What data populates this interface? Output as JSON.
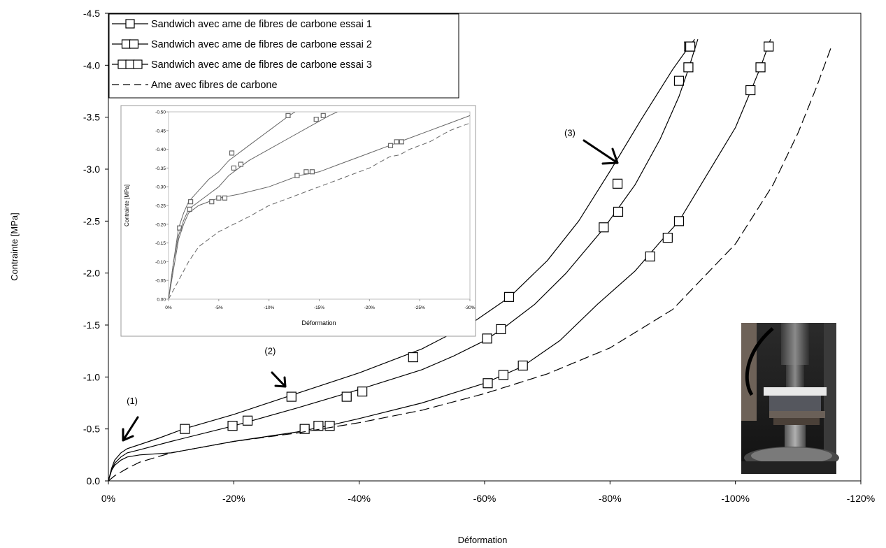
{
  "chart_data": [
    {
      "type": "line",
      "xlabel": "Déformation",
      "ylabel": "Contrainte [MPa]",
      "xlim": [
        0,
        -120
      ],
      "ylim": [
        0,
        -4.5
      ],
      "x_ticks": [
        "0%",
        "-20%",
        "-40%",
        "-60%",
        "-80%",
        "-100%",
        "-120%"
      ],
      "y_ticks": [
        "0.0",
        "-0.5",
        "-1.0",
        "-1.5",
        "-2.0",
        "-2.5",
        "-3.0",
        "-3.5",
        "-4.0",
        "-4.5"
      ],
      "grid": false,
      "legend_position": "top-left",
      "series": [
        {
          "name": "Sandwich avec ame de  fibres de carbone essai 1",
          "marker": "square-1",
          "line": "solid",
          "points": [
            [
              0,
              0
            ],
            [
              -0.5,
              -0.12
            ],
            [
              -1,
              -0.2
            ],
            [
              -2,
              -0.27
            ],
            [
              -3,
              -0.31
            ],
            [
              -5,
              -0.35
            ],
            [
              -8,
              -0.41
            ],
            [
              -12,
              -0.5
            ],
            [
              -20,
              -0.64
            ],
            [
              -30,
              -0.84
            ],
            [
              -40,
              -1.04
            ],
            [
              -50,
              -1.27
            ],
            [
              -58,
              -1.52
            ],
            [
              -64,
              -1.77
            ],
            [
              -70,
              -2.12
            ],
            [
              -75,
              -2.5
            ],
            [
              -80,
              -2.98
            ],
            [
              -85,
              -3.48
            ],
            [
              -90,
              -3.96
            ],
            [
              -92.6,
              -4.18
            ],
            [
              -93.5,
              -4.25
            ]
          ],
          "markers": [
            [
              -12.2,
              -0.5
            ],
            [
              -29.2,
              -0.81
            ],
            [
              -48.6,
              -1.19
            ],
            [
              -63.9,
              -1.77
            ],
            [
              -81.2,
              -2.86
            ],
            [
              -91.0,
              -3.85
            ],
            [
              -92.6,
              -4.18
            ]
          ]
        },
        {
          "name": "Sandwich avec ame de  fibres de carbone essai 2",
          "marker": "square-2",
          "line": "solid",
          "points": [
            [
              0,
              0
            ],
            [
              -0.5,
              -0.1
            ],
            [
              -1,
              -0.17
            ],
            [
              -2,
              -0.23
            ],
            [
              -3,
              -0.27
            ],
            [
              -5,
              -0.3
            ],
            [
              -10,
              -0.38
            ],
            [
              -20,
              -0.53
            ],
            [
              -30,
              -0.7
            ],
            [
              -40,
              -0.88
            ],
            [
              -50,
              -1.07
            ],
            [
              -55,
              -1.2
            ],
            [
              -60,
              -1.35
            ],
            [
              -63,
              -1.47
            ],
            [
              -68,
              -1.7
            ],
            [
              -73,
              -2.0
            ],
            [
              -79,
              -2.43
            ],
            [
              -84,
              -2.85
            ],
            [
              -88,
              -3.29
            ],
            [
              -91,
              -3.7
            ],
            [
              -92.6,
              -3.98
            ],
            [
              -94,
              -4.25
            ]
          ],
          "markers": [
            [
              -19.8,
              -0.53
            ],
            [
              -22.2,
              -0.58
            ],
            [
              -38.0,
              -0.81
            ],
            [
              -40.5,
              -0.86
            ],
            [
              -60.4,
              -1.37
            ],
            [
              -62.6,
              -1.46
            ],
            [
              -79.0,
              -2.44
            ],
            [
              -81.3,
              -2.59
            ],
            [
              -92.5,
              -3.98
            ],
            [
              -92.8,
              -4.18
            ]
          ]
        },
        {
          "name": "Sandwich avec ame de  fibres de carbone essai 3",
          "marker": "square-3",
          "line": "solid",
          "points": [
            [
              0,
              0
            ],
            [
              -0.5,
              -0.1
            ],
            [
              -1,
              -0.15
            ],
            [
              -2,
              -0.2
            ],
            [
              -3,
              -0.23
            ],
            [
              -5,
              -0.25
            ],
            [
              -10,
              -0.27
            ],
            [
              -20,
              -0.38
            ],
            [
              -30,
              -0.47
            ],
            [
              -35,
              -0.53
            ],
            [
              -40,
              -0.6
            ],
            [
              -50,
              -0.75
            ],
            [
              -60,
              -0.94
            ],
            [
              -66,
              -1.1
            ],
            [
              -72,
              -1.35
            ],
            [
              -78,
              -1.7
            ],
            [
              -84,
              -2.02
            ],
            [
              -88,
              -2.3
            ],
            [
              -91,
              -2.5
            ],
            [
              -95,
              -2.9
            ],
            [
              -100,
              -3.4
            ],
            [
              -102.5,
              -3.76
            ],
            [
              -104,
              -3.98
            ],
            [
              -105.6,
              -4.25
            ]
          ],
          "markers": [
            [
              -31.3,
              -0.5
            ],
            [
              -33.5,
              -0.53
            ],
            [
              -35.3,
              -0.53
            ],
            [
              -60.5,
              -0.94
            ],
            [
              -63.0,
              -1.02
            ],
            [
              -66.1,
              -1.11
            ],
            [
              -86.4,
              -2.16
            ],
            [
              -89.2,
              -2.34
            ],
            [
              -91.0,
              -2.5
            ],
            [
              -102.4,
              -3.76
            ],
            [
              -104.0,
              -3.98
            ],
            [
              -105.3,
              -4.18
            ]
          ]
        },
        {
          "name": "Ame avec fibres de carbone",
          "marker": "none",
          "line": "dashed",
          "points": [
            [
              0,
              0
            ],
            [
              -1,
              -0.05
            ],
            [
              -3,
              -0.12
            ],
            [
              -5,
              -0.18
            ],
            [
              -10,
              -0.27
            ],
            [
              -20,
              -0.38
            ],
            [
              -30,
              -0.46
            ],
            [
              -40,
              -0.56
            ],
            [
              -50,
              -0.68
            ],
            [
              -60,
              -0.84
            ],
            [
              -70,
              -1.03
            ],
            [
              -80,
              -1.28
            ],
            [
              -90,
              -1.65
            ],
            [
              -100,
              -2.28
            ],
            [
              -106,
              -2.85
            ],
            [
              -110,
              -3.35
            ],
            [
              -113,
              -3.8
            ],
            [
              -115.3,
              -4.18
            ]
          ]
        }
      ],
      "annotations": [
        {
          "text": "(1)",
          "x": -3.8,
          "y": -0.74
        },
        {
          "text": "(2)",
          "x": -25.8,
          "y": -1.22
        },
        {
          "text": "(3)",
          "x": -73.6,
          "y": -3.32
        }
      ]
    },
    {
      "type": "line",
      "xlabel": "Déformation",
      "ylabel": "Contrainte [MPa]",
      "xlim": [
        0,
        -30
      ],
      "ylim": [
        0,
        -0.5
      ],
      "x_ticks": [
        "0%",
        "-5%",
        "-10%",
        "-15%",
        "-20%",
        "-25%",
        "-30%"
      ],
      "y_ticks": [
        "0.00",
        "-0.05",
        "-0.10",
        "-0.15",
        "-0.20",
        "-0.25",
        "-0.30",
        "-0.35",
        "-0.40",
        "-0.45",
        "-0.50"
      ],
      "grid": false,
      "series": [
        {
          "ref": 1,
          "line": "solid",
          "points": [
            [
              0,
              0
            ],
            [
              -0.5,
              -0.1
            ],
            [
              -1,
              -0.19
            ],
            [
              -1.5,
              -0.23
            ],
            [
              -2,
              -0.26
            ],
            [
              -3,
              -0.29
            ],
            [
              -4,
              -0.32
            ],
            [
              -5,
              -0.34
            ],
            [
              -6,
              -0.37
            ],
            [
              -8,
              -0.41
            ],
            [
              -10,
              -0.45
            ],
            [
              -12,
              -0.49
            ],
            [
              -12.6,
              -0.5
            ]
          ],
          "markers": [
            [
              -1.1,
              -0.19
            ],
            [
              -2.2,
              -0.26
            ],
            [
              -6.3,
              -0.39
            ],
            [
              -11.9,
              -0.49
            ]
          ]
        },
        {
          "ref": 2,
          "line": "solid",
          "points": [
            [
              0,
              0
            ],
            [
              -0.5,
              -0.1
            ],
            [
              -1,
              -0.17
            ],
            [
              -1.5,
              -0.21
            ],
            [
              -2,
              -0.24
            ],
            [
              -3,
              -0.26
            ],
            [
              -4,
              -0.28
            ],
            [
              -5,
              -0.3
            ],
            [
              -6,
              -0.33
            ],
            [
              -8,
              -0.37
            ],
            [
              -10,
              -0.4
            ],
            [
              -12,
              -0.43
            ],
            [
              -14,
              -0.46
            ],
            [
              -16,
              -0.49
            ],
            [
              -16.8,
              -0.5
            ]
          ],
          "markers": [
            [
              -2.1,
              -0.24
            ],
            [
              -6.5,
              -0.35
            ],
            [
              -7.2,
              -0.36
            ],
            [
              -14.7,
              -0.48
            ],
            [
              -15.4,
              -0.49
            ]
          ]
        },
        {
          "ref": 3,
          "line": "solid",
          "points": [
            [
              0,
              0
            ],
            [
              -0.5,
              -0.08
            ],
            [
              -1,
              -0.16
            ],
            [
              -1.5,
              -0.2
            ],
            [
              -2,
              -0.23
            ],
            [
              -3,
              -0.25
            ],
            [
              -4,
              -0.26
            ],
            [
              -5,
              -0.27
            ],
            [
              -7,
              -0.28
            ],
            [
              -10,
              -0.3
            ],
            [
              -13,
              -0.33
            ],
            [
              -15,
              -0.34
            ],
            [
              -17,
              -0.36
            ],
            [
              -20,
              -0.39
            ],
            [
              -22,
              -0.41
            ],
            [
              -24,
              -0.43
            ],
            [
              -26,
              -0.45
            ],
            [
              -28,
              -0.47
            ],
            [
              -30,
              -0.49
            ]
          ],
          "markers": [
            [
              -4.3,
              -0.26
            ],
            [
              -5.0,
              -0.27
            ],
            [
              -5.6,
              -0.27
            ],
            [
              -12.8,
              -0.33
            ],
            [
              -13.7,
              -0.34
            ],
            [
              -14.3,
              -0.34
            ],
            [
              -22.1,
              -0.41
            ],
            [
              -22.7,
              -0.42
            ],
            [
              -23.2,
              -0.42
            ]
          ]
        },
        {
          "ref": 4,
          "line": "dashed",
          "points": [
            [
              0,
              0
            ],
            [
              -1,
              -0.05
            ],
            [
              -2,
              -0.1
            ],
            [
              -3,
              -0.14
            ],
            [
              -5,
              -0.18
            ],
            [
              -8,
              -0.22
            ],
            [
              -10,
              -0.25
            ],
            [
              -13,
              -0.28
            ],
            [
              -16,
              -0.31
            ],
            [
              -20,
              -0.35
            ],
            [
              -22,
              -0.38
            ],
            [
              -23,
              -0.385
            ],
            [
              -24,
              -0.4
            ],
            [
              -26,
              -0.42
            ],
            [
              -28,
              -0.45
            ],
            [
              -30,
              -0.47
            ]
          ]
        }
      ]
    }
  ],
  "photo": {
    "icon": "compression-test-photo-icon"
  },
  "colors": {
    "line": "#000000",
    "inset_line": "#666666",
    "inset_border": "#999999"
  }
}
